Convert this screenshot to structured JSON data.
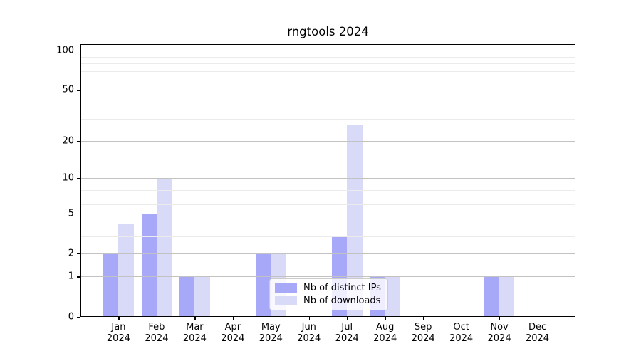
{
  "chart_data": {
    "type": "bar",
    "title": "rngtools 2024",
    "categories": [
      "Jan",
      "Feb",
      "Mar",
      "Apr",
      "May",
      "Jun",
      "Jul",
      "Aug",
      "Sep",
      "Oct",
      "Nov",
      "Dec"
    ],
    "x_year_label": "2024",
    "series": [
      {
        "key": "distinct-ips",
        "name": "Nb of distinct IPs",
        "color": "#a8a8f8",
        "values": [
          2,
          5,
          1,
          0,
          2,
          0,
          3,
          1,
          0,
          0,
          1,
          0
        ]
      },
      {
        "key": "downloads",
        "name": "Nb of downloads",
        "color": "#d9d9f8",
        "values": [
          4,
          10,
          1,
          0,
          2,
          0,
          27,
          1,
          0,
          0,
          1,
          0
        ]
      }
    ],
    "yscale": "log10(1+x)",
    "ylim": [
      0,
      112
    ],
    "yticks": [
      0,
      1,
      2,
      5,
      10,
      20,
      50,
      100
    ],
    "yticks_minor": [
      3,
      4,
      6,
      7,
      8,
      9,
      30,
      40,
      60,
      70,
      80,
      90
    ],
    "legend": {
      "position": "lower center"
    },
    "grid": {
      "major": true,
      "minor": true,
      "drawn_above_bars": true
    },
    "colors": {
      "grid_major": "#c2c2c2",
      "grid_minor": "#ebebeb",
      "axis": "#000000",
      "background": "#ffffff"
    }
  }
}
